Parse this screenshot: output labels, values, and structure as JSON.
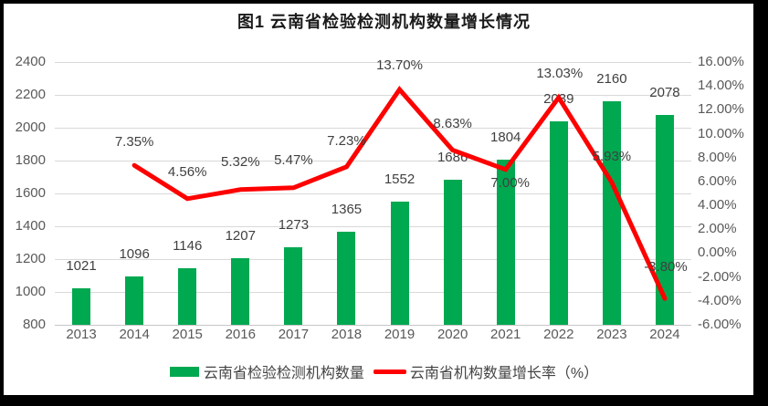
{
  "title": "图1 云南省检验检测机构数量增长情况",
  "legend": {
    "bars_label": "云南省检验检测机构数量",
    "line_label": "云南省机构数量增长率（%）"
  },
  "colors": {
    "bar": "#00A850",
    "line": "#FE0000",
    "gridline": "#D9D9D9",
    "axis_line": "#C6C6C6",
    "axis_text": "#595959",
    "data_label_text": "#404040",
    "title_text": "#1A1A1A",
    "frame": "#000000",
    "background": "#FFFFFF"
  },
  "chart_data": {
    "type": "bar",
    "subtype": "bar+line combo, line on secondary axis",
    "title": "图1 云南省检验检测机构数量增长情况",
    "categories": [
      "2013",
      "2014",
      "2015",
      "2016",
      "2017",
      "2018",
      "2019",
      "2020",
      "2021",
      "2022",
      "2023",
      "2024"
    ],
    "series": [
      {
        "name": "云南省检验检测机构数量",
        "type": "bar",
        "axis": "left",
        "values": [
          1021,
          1096,
          1146,
          1207,
          1273,
          1365,
          1552,
          1686,
          1804,
          2039,
          2160,
          2078
        ],
        "point_labels": [
          "1021",
          "1096",
          "1146",
          "1207",
          "1273",
          "1365",
          "1552",
          "1686",
          "1804",
          "2039",
          "2160",
          "2078"
        ]
      },
      {
        "name": "云南省机构数量增长率（%）",
        "type": "line",
        "axis": "right",
        "values": [
          null,
          7.35,
          4.56,
          5.32,
          5.47,
          7.23,
          13.7,
          8.63,
          7.0,
          13.03,
          5.93,
          -3.8
        ],
        "point_labels": [
          null,
          "7.35%",
          "4.56%",
          "5.32%",
          "5.47%",
          "7.23%",
          "13.70%",
          "8.63%",
          "7.00%",
          "13.03%",
          "5.93%",
          "-3.80%"
        ]
      }
    ],
    "left_axis": {
      "min": 800,
      "max": 2400,
      "step": 200,
      "tick_labels": [
        "2400",
        "2200",
        "2000",
        "1800",
        "1600",
        "1400",
        "1200",
        "1000",
        "800"
      ]
    },
    "right_axis": {
      "min": -6,
      "max": 16,
      "step": 2,
      "tick_labels": [
        "16.00%",
        "14.00%",
        "12.00%",
        "10.00%",
        "8.00%",
        "6.00%",
        "4.00%",
        "2.00%",
        "0.00%",
        "-2.00%",
        "-4.00%",
        "-6.00%"
      ]
    },
    "xlabel": "",
    "ylabel": "",
    "grid": true,
    "legend_position": "bottom"
  }
}
